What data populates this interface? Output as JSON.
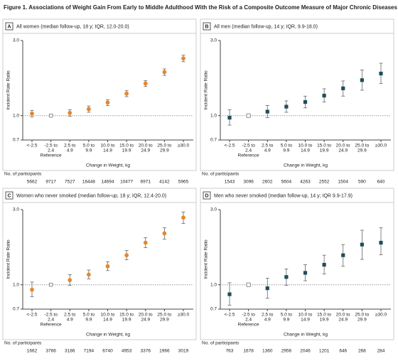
{
  "figure_title": "Figure 1. Associations of Weight Gain From Early to Middle Adulthood With the Risk of a Composite Outcome Measure of Major Chronic Diseases",
  "chart_data": [
    {
      "type": "point",
      "panel": "A",
      "title": "All women (median follow-up, 18 y; IQR, 12.0-20.0)",
      "xlabel": "Change in Weight, kg",
      "ylabel": "Incident Rate Ratio",
      "categories": [
        [
          "<-2.5"
        ],
        [
          "-2.5 to",
          "2.4"
        ],
        [
          "2.5 to",
          "4.9"
        ],
        [
          "5.0 to",
          "9.9"
        ],
        [
          "10.0 to",
          "14.9"
        ],
        [
          "15.0 to",
          "19.9"
        ],
        [
          "20.0 to",
          "24.9"
        ],
        [
          "25.0 to",
          "29.9"
        ],
        [
          "≥30.0"
        ]
      ],
      "reference": "Reference",
      "values": [
        1.03,
        1.0,
        1.04,
        1.1,
        1.21,
        1.38,
        1.6,
        1.89,
        2.31
      ],
      "lower": [
        0.98,
        null,
        0.99,
        1.05,
        1.16,
        1.32,
        1.53,
        1.8,
        2.2
      ],
      "upper": [
        1.08,
        null,
        1.09,
        1.15,
        1.26,
        1.44,
        1.67,
        1.98,
        2.42
      ],
      "color": "#e8862a",
      "marker": "circle",
      "ylim": [
        0.7,
        3.0
      ],
      "yticks": [
        0.7,
        {
          "value": 1,
          "label": "1.0"
        },
        {
          "value": 3,
          "label": "3.0"
        }
      ],
      "log_scale": true,
      "hline": 1,
      "participants_label": "No. of participants",
      "participants": [
        "5662",
        "9717",
        "7527",
        "16448",
        "14694",
        "10477",
        "6971",
        "4142",
        "5965"
      ]
    },
    {
      "type": "point",
      "panel": "B",
      "title": "All men (median follow-up, 14 y; IQR, 9.9-18.0)",
      "xlabel": "Change in Weight, kg",
      "ylabel": "Incident Rate Ratio",
      "categories": [
        [
          "<-2.5"
        ],
        [
          "-2.5 to",
          "2.4"
        ],
        [
          "2.5 to",
          "4.9"
        ],
        [
          "5.0 to",
          "9.9"
        ],
        [
          "10.0 to",
          "14.9"
        ],
        [
          "15.0 to",
          "19.9"
        ],
        [
          "20.0 to",
          "24.9"
        ],
        [
          "25.0 to",
          "29.9"
        ],
        [
          "≥30.0"
        ]
      ],
      "reference": "Reference",
      "values": [
        0.97,
        1.0,
        1.06,
        1.14,
        1.22,
        1.34,
        1.49,
        1.68,
        1.85
      ],
      "lower": [
        0.87,
        null,
        0.97,
        1.05,
        1.12,
        1.22,
        1.33,
        1.45,
        1.6
      ],
      "upper": [
        1.09,
        null,
        1.16,
        1.24,
        1.33,
        1.48,
        1.66,
        1.95,
        2.15
      ],
      "color": "#1f4e5a",
      "marker": "square",
      "ylim": [
        0.7,
        3.0
      ],
      "yticks": [
        0.7,
        {
          "value": 1,
          "label": "1.0"
        },
        {
          "value": 3,
          "label": "3.0"
        }
      ],
      "log_scale": true,
      "hline": 1,
      "participants_label": "No. of participants",
      "participants": [
        "1543",
        "3096",
        "2602",
        "5604",
        "4263",
        "2552",
        "1504",
        "590",
        "640"
      ]
    },
    {
      "type": "point",
      "panel": "C",
      "title": "Women who never smoked (median follow-up, 18 y; IQR, 12.4-20.0)",
      "xlabel": "Change in Weight, kg",
      "ylabel": "Incident Rate Ratio",
      "categories": [
        [
          "<-2.5"
        ],
        [
          "-2.5 to",
          "2.4"
        ],
        [
          "2.5 to",
          "4.9"
        ],
        [
          "5.0 to",
          "9.9"
        ],
        [
          "10.0 to",
          "14.9"
        ],
        [
          "15.0 to",
          "19.9"
        ],
        [
          "20.0 to",
          "24.9"
        ],
        [
          "25.0 to",
          "29.9"
        ],
        [
          "≥30.0"
        ]
      ],
      "reference": "Reference",
      "values": [
        0.93,
        1.0,
        1.07,
        1.16,
        1.31,
        1.54,
        1.85,
        2.12,
        2.67
      ],
      "lower": [
        0.84,
        null,
        0.99,
        1.09,
        1.23,
        1.44,
        1.72,
        1.95,
        2.45
      ],
      "upper": [
        1.04,
        null,
        1.16,
        1.24,
        1.4,
        1.65,
        1.99,
        2.3,
        2.9
      ],
      "color": "#e8862a",
      "marker": "circle",
      "ylim": [
        0.7,
        3.0
      ],
      "yticks": [
        0.7,
        {
          "value": 1,
          "label": "1.0"
        },
        {
          "value": 3,
          "label": "3.0"
        }
      ],
      "log_scale": true,
      "hline": 1,
      "participants_label": "No. of participants",
      "participants": [
        "1662",
        "3766",
        "3186",
        "7194",
        "6740",
        "4953",
        "3376",
        "1966",
        "3019"
      ]
    },
    {
      "type": "point",
      "panel": "D",
      "title": "Men who never smoked (median follow-up, 14 y; IQR 9.9-17.9)",
      "xlabel": "Change in Weight, kg",
      "ylabel": "Incident Rate Ratio",
      "categories": [
        [
          "<-2.5"
        ],
        [
          "-2.5 to",
          "2.4"
        ],
        [
          "2.5 to",
          "4.9"
        ],
        [
          "5.0 to",
          "9.9"
        ],
        [
          "10.0 to",
          "14.9"
        ],
        [
          "15.0 to",
          "19.9"
        ],
        [
          "20.0 to",
          "24.9"
        ],
        [
          "25.0 to",
          "29.9"
        ],
        [
          "≥30.0"
        ]
      ],
      "reference": "Reference",
      "values": [
        0.87,
        1.0,
        0.95,
        1.12,
        1.19,
        1.34,
        1.54,
        1.8,
        1.85
      ],
      "lower": [
        0.74,
        null,
        0.82,
        0.99,
        1.06,
        1.17,
        1.31,
        1.45,
        1.55
      ],
      "upper": [
        1.03,
        null,
        1.1,
        1.26,
        1.34,
        1.54,
        1.8,
        2.22,
        2.3
      ],
      "color": "#1f4e5a",
      "marker": "square",
      "ylim": [
        0.7,
        3.0
      ],
      "yticks": [
        0.7,
        {
          "value": 1,
          "label": "1.0"
        },
        {
          "value": 3,
          "label": "3.0"
        }
      ],
      "log_scale": true,
      "hline": 1,
      "participants_label": "No. of participants",
      "participants": [
        "763",
        "1678",
        "1360",
        "2956",
        "2046",
        "1201",
        "646",
        "268",
        "284"
      ]
    }
  ]
}
